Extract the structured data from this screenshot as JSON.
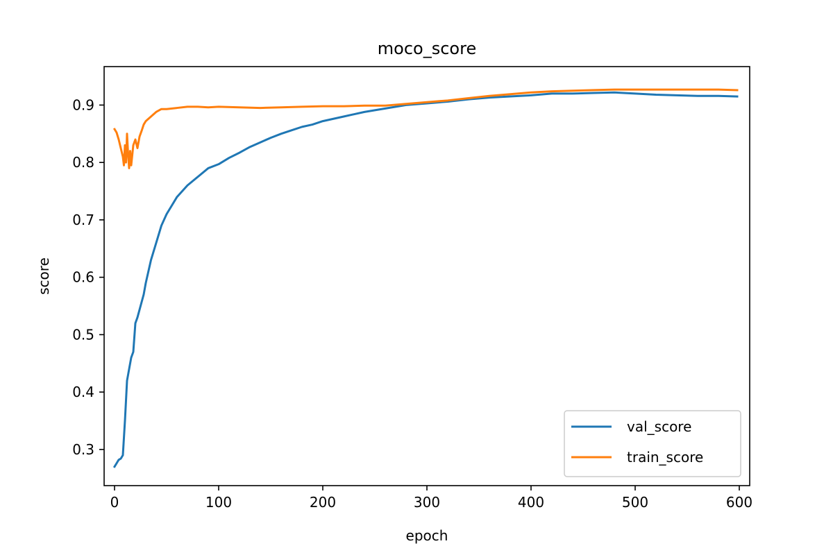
{
  "chart_data": {
    "type": "line",
    "title": "moco_score",
    "xlabel": "epoch",
    "ylabel": "score",
    "xlim": [
      -10,
      610
    ],
    "ylim": [
      0.237,
      0.967
    ],
    "xticks": [
      0,
      100,
      200,
      300,
      400,
      500,
      600
    ],
    "yticks": [
      0.3,
      0.4,
      0.5,
      0.6,
      0.7,
      0.8,
      0.9
    ],
    "xtick_labels": [
      "0",
      "100",
      "200",
      "300",
      "400",
      "500",
      "600"
    ],
    "ytick_labels": [
      "0.3",
      "0.4",
      "0.5",
      "0.6",
      "0.7",
      "0.8",
      "0.9"
    ],
    "grid": false,
    "legend_position": "lower right",
    "series": [
      {
        "name": "val_score",
        "color": "#1f77b4",
        "x": [
          0,
          2,
          4,
          6,
          8,
          10,
          12,
          14,
          16,
          18,
          20,
          22,
          25,
          28,
          30,
          35,
          40,
          45,
          50,
          55,
          60,
          70,
          80,
          90,
          100,
          110,
          120,
          130,
          140,
          150,
          160,
          170,
          180,
          190,
          200,
          220,
          240,
          260,
          280,
          300,
          320,
          340,
          360,
          380,
          400,
          420,
          440,
          460,
          480,
          500,
          520,
          540,
          560,
          580,
          598
        ],
        "y": [
          0.27,
          0.276,
          0.282,
          0.284,
          0.29,
          0.35,
          0.42,
          0.44,
          0.46,
          0.47,
          0.52,
          0.53,
          0.55,
          0.57,
          0.59,
          0.63,
          0.66,
          0.69,
          0.71,
          0.725,
          0.74,
          0.76,
          0.775,
          0.79,
          0.797,
          0.808,
          0.817,
          0.827,
          0.835,
          0.843,
          0.85,
          0.856,
          0.862,
          0.866,
          0.872,
          0.88,
          0.888,
          0.894,
          0.9,
          0.903,
          0.906,
          0.91,
          0.913,
          0.915,
          0.917,
          0.92,
          0.92,
          0.921,
          0.922,
          0.92,
          0.918,
          0.917,
          0.916,
          0.916,
          0.915
        ]
      },
      {
        "name": "train_score",
        "color": "#ff7f0e",
        "x": [
          0,
          2,
          4,
          6,
          8,
          9,
          10,
          11,
          12,
          13,
          14,
          15,
          16,
          18,
          20,
          22,
          24,
          26,
          28,
          30,
          35,
          40,
          45,
          50,
          60,
          70,
          80,
          90,
          100,
          120,
          140,
          160,
          180,
          200,
          220,
          240,
          260,
          280,
          300,
          320,
          340,
          360,
          380,
          400,
          420,
          440,
          460,
          480,
          500,
          520,
          540,
          560,
          580,
          598
        ],
        "y": [
          0.858,
          0.852,
          0.84,
          0.825,
          0.81,
          0.795,
          0.83,
          0.8,
          0.85,
          0.815,
          0.79,
          0.82,
          0.795,
          0.83,
          0.84,
          0.825,
          0.845,
          0.855,
          0.866,
          0.872,
          0.88,
          0.888,
          0.893,
          0.893,
          0.895,
          0.897,
          0.897,
          0.896,
          0.897,
          0.896,
          0.895,
          0.896,
          0.897,
          0.898,
          0.898,
          0.899,
          0.899,
          0.902,
          0.905,
          0.908,
          0.912,
          0.916,
          0.919,
          0.922,
          0.924,
          0.925,
          0.926,
          0.927,
          0.927,
          0.927,
          0.927,
          0.927,
          0.927,
          0.926
        ]
      }
    ]
  }
}
